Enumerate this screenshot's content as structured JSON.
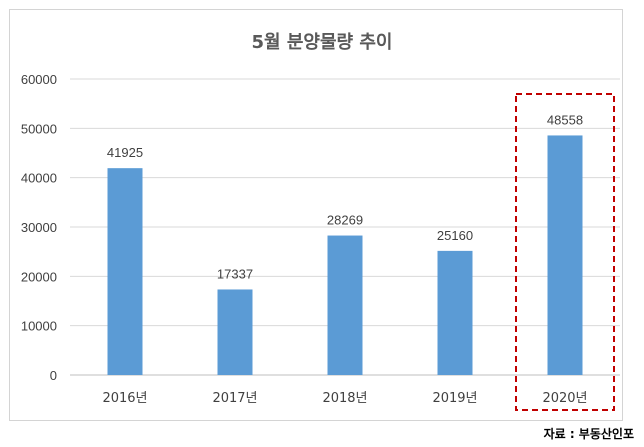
{
  "chart_data": {
    "type": "bar",
    "title": "5월 분양물량 추이",
    "categories": [
      "2016년",
      "2017년",
      "2018년",
      "2019년",
      "2020년"
    ],
    "values": [
      41925,
      17337,
      28269,
      25160,
      48558
    ],
    "ylim": [
      0,
      60000
    ],
    "yticks": [
      "0",
      "10000",
      "20000",
      "30000",
      "40000",
      "50000",
      "60000"
    ],
    "grid": true,
    "bar_color": "#5b9bd5",
    "highlight": {
      "category": "2020년",
      "style": "dashed box",
      "color": "#c00000"
    }
  },
  "source": "자료 : 부동산인포"
}
